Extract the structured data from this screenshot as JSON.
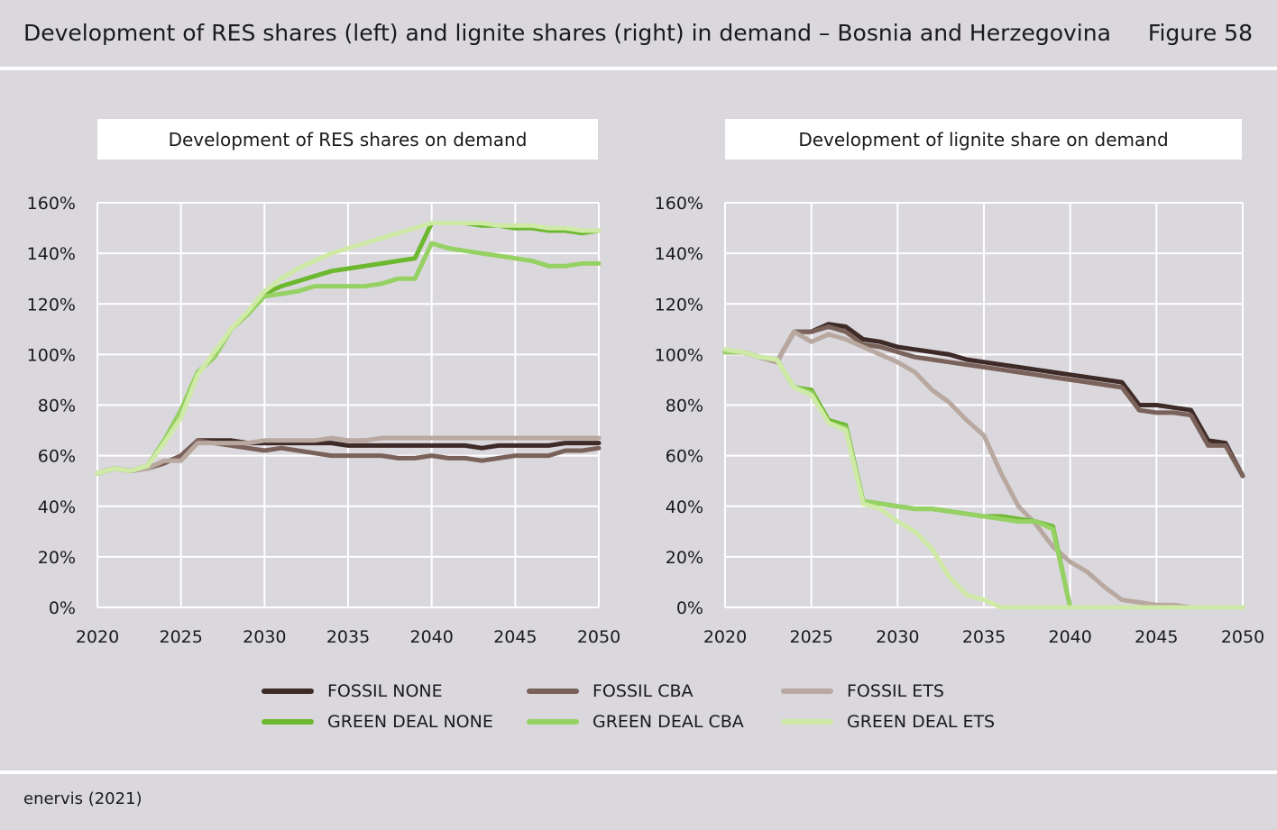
{
  "header": {
    "title": "Development of RES shares (left) and lignite shares (right) in demand – Bosnia and Herzegovina",
    "figure": "Figure 58"
  },
  "legend": {
    "items": [
      {
        "label": "FOSSIL NONE",
        "color": "#3e2a27"
      },
      {
        "label": "FOSSIL CBA",
        "color": "#7a625a"
      },
      {
        "label": "FOSSIL ETS",
        "color": "#b8a8a0"
      },
      {
        "label": "GREEN DEAL NONE",
        "color": "#6cb82e"
      },
      {
        "label": "GREEN DEAL CBA",
        "color": "#96d163"
      },
      {
        "label": "GREEN DEAL ETS",
        "color": "#cfeaa6"
      }
    ]
  },
  "footer": {
    "source": "enervis (2021)"
  },
  "chart_data": [
    {
      "type": "line",
      "title": "Development of RES shares on demand",
      "xlabel": "",
      "ylabel": "",
      "xlim": [
        2020,
        2050
      ],
      "ylim": [
        0,
        160
      ],
      "x_ticks": [
        "2020",
        "2025",
        "2030",
        "2035",
        "2040",
        "2045",
        "2050"
      ],
      "y_ticks": [
        "0%",
        "20%",
        "40%",
        "60%",
        "80%",
        "100%",
        "120%",
        "140%",
        "160%"
      ],
      "grid": true,
      "x": [
        2020,
        2021,
        2022,
        2023,
        2024,
        2025,
        2026,
        2027,
        2028,
        2029,
        2030,
        2031,
        2032,
        2033,
        2034,
        2035,
        2036,
        2037,
        2038,
        2039,
        2040,
        2041,
        2042,
        2043,
        2044,
        2045,
        2046,
        2047,
        2048,
        2049,
        2050
      ],
      "series": [
        {
          "name": "FOSSIL NONE",
          "values": [
            53,
            55,
            54,
            55,
            57,
            60,
            66,
            66,
            66,
            65,
            65,
            65,
            65,
            65,
            65,
            64,
            64,
            64,
            64,
            64,
            64,
            64,
            64,
            63,
            64,
            64,
            64,
            64,
            65,
            65,
            65
          ]
        },
        {
          "name": "FOSSIL CBA",
          "values": [
            53,
            55,
            54,
            55,
            57,
            60,
            66,
            65,
            64,
            63,
            62,
            63,
            62,
            61,
            60,
            60,
            60,
            60,
            59,
            59,
            60,
            59,
            59,
            58,
            59,
            60,
            60,
            60,
            62,
            62,
            63
          ]
        },
        {
          "name": "FOSSIL ETS",
          "values": [
            53,
            55,
            54,
            55,
            58,
            58,
            65,
            65,
            65,
            65,
            66,
            66,
            66,
            66,
            67,
            66,
            66,
            67,
            67,
            67,
            67,
            67,
            67,
            67,
            67,
            67,
            67,
            67,
            67,
            67,
            67
          ]
        },
        {
          "name": "GREEN DEAL NONE",
          "values": [
            53,
            55,
            54,
            56,
            66,
            78,
            93,
            99,
            110,
            116,
            124,
            127,
            129,
            131,
            133,
            134,
            135,
            136,
            137,
            138,
            152,
            152,
            152,
            151,
            151,
            150,
            150,
            149,
            149,
            148,
            149
          ]
        },
        {
          "name": "GREEN DEAL CBA",
          "values": [
            53,
            55,
            54,
            56,
            66,
            78,
            93,
            99,
            110,
            116,
            123,
            124,
            125,
            127,
            127,
            127,
            127,
            128,
            130,
            130,
            144,
            142,
            141,
            140,
            139,
            138,
            137,
            135,
            135,
            136,
            136
          ]
        },
        {
          "name": "GREEN DEAL ETS",
          "values": [
            53,
            55,
            54,
            56,
            65,
            75,
            92,
            101,
            110,
            117,
            125,
            130,
            134,
            137,
            140,
            142,
            144,
            146,
            148,
            150,
            152,
            152,
            152,
            152,
            151,
            151,
            151,
            150,
            150,
            149,
            149
          ]
        }
      ]
    },
    {
      "type": "line",
      "title": "Development of lignite share on demand",
      "xlabel": "",
      "ylabel": "",
      "xlim": [
        2020,
        2050
      ],
      "ylim": [
        0,
        160
      ],
      "x_ticks": [
        "2020",
        "2025",
        "2030",
        "2035",
        "2040",
        "2045",
        "2050"
      ],
      "y_ticks": [
        "0%",
        "20%",
        "40%",
        "60%",
        "80%",
        "100%",
        "120%",
        "140%",
        "160%"
      ],
      "grid": true,
      "x": [
        2020,
        2021,
        2022,
        2023,
        2024,
        2025,
        2026,
        2027,
        2028,
        2029,
        2030,
        2031,
        2032,
        2033,
        2034,
        2035,
        2036,
        2037,
        2038,
        2039,
        2040,
        2041,
        2042,
        2043,
        2044,
        2045,
        2046,
        2047,
        2048,
        2049,
        2050
      ],
      "series": [
        {
          "name": "FOSSIL NONE",
          "values": [
            101,
            101,
            99,
            97,
            109,
            109,
            112,
            111,
            106,
            105,
            103,
            102,
            101,
            100,
            98,
            97,
            96,
            95,
            94,
            93,
            92,
            91,
            90,
            89,
            80,
            80,
            79,
            78,
            66,
            65,
            52
          ]
        },
        {
          "name": "FOSSIL CBA",
          "values": [
            101,
            101,
            99,
            97,
            109,
            109,
            111,
            109,
            104,
            103,
            101,
            99,
            98,
            97,
            96,
            95,
            94,
            93,
            92,
            91,
            90,
            89,
            88,
            87,
            78,
            77,
            77,
            76,
            64,
            64,
            52
          ]
        },
        {
          "name": "FOSSIL ETS",
          "values": [
            101,
            101,
            99,
            97,
            109,
            105,
            108,
            106,
            103,
            100,
            97,
            93,
            86,
            81,
            74,
            68,
            53,
            40,
            33,
            24,
            18,
            14,
            8,
            3,
            2,
            1,
            1,
            0,
            0,
            0,
            0
          ]
        },
        {
          "name": "GREEN DEAL NONE",
          "values": [
            101,
            101,
            99,
            98,
            87,
            86,
            74,
            72,
            42,
            41,
            40,
            39,
            39,
            38,
            37,
            36,
            36,
            35,
            34,
            32,
            0,
            0,
            0,
            0,
            0,
            0,
            0,
            0,
            0,
            0,
            0
          ]
        },
        {
          "name": "GREEN DEAL CBA",
          "values": [
            101,
            101,
            99,
            98,
            87,
            85,
            73,
            71,
            42,
            41,
            40,
            39,
            39,
            38,
            37,
            36,
            35,
            34,
            34,
            31,
            0,
            0,
            0,
            0,
            0,
            0,
            0,
            0,
            0,
            0,
            0
          ]
        },
        {
          "name": "GREEN DEAL ETS",
          "values": [
            102,
            101,
            99,
            98,
            87,
            84,
            73,
            70,
            41,
            39,
            34,
            30,
            23,
            12,
            5,
            3,
            0,
            0,
            0,
            0,
            0,
            0,
            0,
            0,
            0,
            0,
            0,
            0,
            0,
            0,
            0
          ]
        }
      ]
    }
  ]
}
